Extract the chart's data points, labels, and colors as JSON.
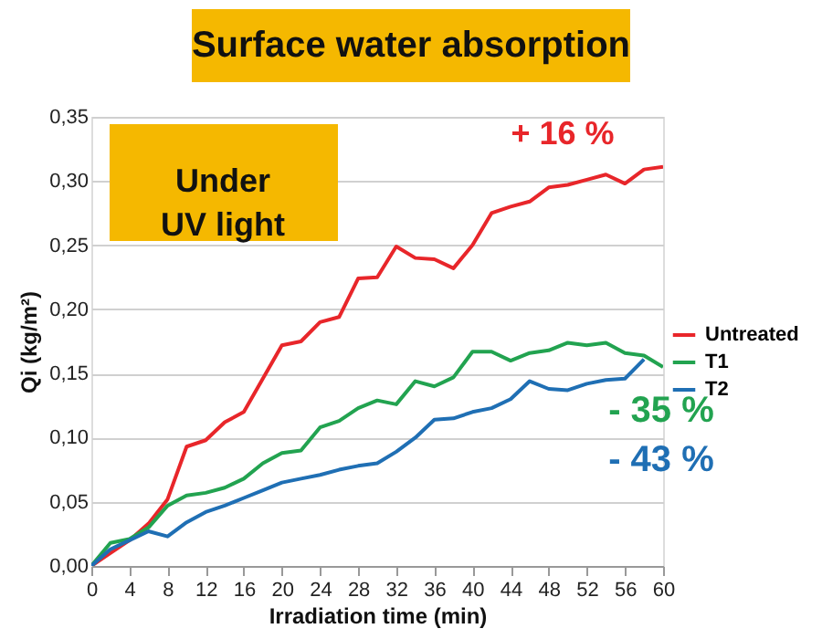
{
  "chart_data": {
    "type": "line",
    "title": "Surface water absorption",
    "xlabel": "Irradiation time (min)",
    "ylabel": "Qi (kg/m²)",
    "x": [
      0,
      2,
      4,
      6,
      8,
      10,
      12,
      14,
      16,
      18,
      20,
      22,
      24,
      26,
      28,
      30,
      32,
      34,
      36,
      38,
      40,
      42,
      44,
      46,
      48,
      50,
      52,
      54,
      56,
      58,
      60
    ],
    "series": [
      {
        "name": "Untreated",
        "color": "#e8262a",
        "values": [
          0,
          0.01,
          0.02,
          0.033,
          0.052,
          0.093,
          0.098,
          0.112,
          0.12,
          0.146,
          0.172,
          0.175,
          0.19,
          0.194,
          0.224,
          0.225,
          0.249,
          0.24,
          0.239,
          0.232,
          0.25,
          0.275,
          0.28,
          0.284,
          0.295,
          0.297,
          0.301,
          0.305,
          0.298,
          0.309,
          0.311
        ]
      },
      {
        "name": "T1",
        "color": "#22a350",
        "values": [
          0,
          0.018,
          0.021,
          0.03,
          0.047,
          0.055,
          0.057,
          0.061,
          0.068,
          0.08,
          0.088,
          0.09,
          0.108,
          0.113,
          0.123,
          0.129,
          0.126,
          0.144,
          0.14,
          0.147,
          0.167,
          0.167,
          0.16,
          0.166,
          0.168,
          0.174,
          0.172,
          0.174,
          0.166,
          0.164,
          0.155
        ]
      },
      {
        "name": "T2",
        "color": "#1f6fb4",
        "x": [
          0,
          2,
          4,
          6,
          8,
          10,
          12,
          14,
          16,
          18,
          20,
          22,
          24,
          26,
          28,
          30,
          32,
          34,
          36,
          38,
          40,
          42,
          44,
          46,
          48,
          50,
          52,
          54,
          56,
          58
        ],
        "values": [
          0,
          0.013,
          0.02,
          0.027,
          0.023,
          0.034,
          0.042,
          0.047,
          0.053,
          0.059,
          0.065,
          0.068,
          0.071,
          0.075,
          0.078,
          0.08,
          0.089,
          0.1,
          0.114,
          0.115,
          0.12,
          0.123,
          0.13,
          0.144,
          0.138,
          0.137,
          0.142,
          0.145,
          0.146,
          0.161
        ]
      }
    ],
    "annotations": [
      "Under\nUV light",
      "+ 16 %",
      "- 35 %",
      "- 43 %"
    ],
    "xlim": [
      0,
      60
    ],
    "xticks": [
      0,
      4,
      8,
      12,
      16,
      20,
      24,
      28,
      32,
      36,
      40,
      44,
      48,
      52,
      56,
      60
    ],
    "ylim": [
      0,
      0.35
    ],
    "yticks": [
      {
        "value": 0,
        "label": "0,00"
      },
      {
        "value": 0.05,
        "label": "0,05"
      },
      {
        "value": 0.1,
        "label": "0,10"
      },
      {
        "value": 0.15,
        "label": "0,15"
      },
      {
        "value": 0.2,
        "label": "0,20"
      },
      {
        "value": 0.25,
        "label": "0,25"
      },
      {
        "value": 0.3,
        "label": "0,30"
      },
      {
        "value": 0.35,
        "label": "0,35"
      }
    ],
    "grid": "y",
    "legend": "right",
    "marker": "none",
    "line_style": "solid"
  }
}
